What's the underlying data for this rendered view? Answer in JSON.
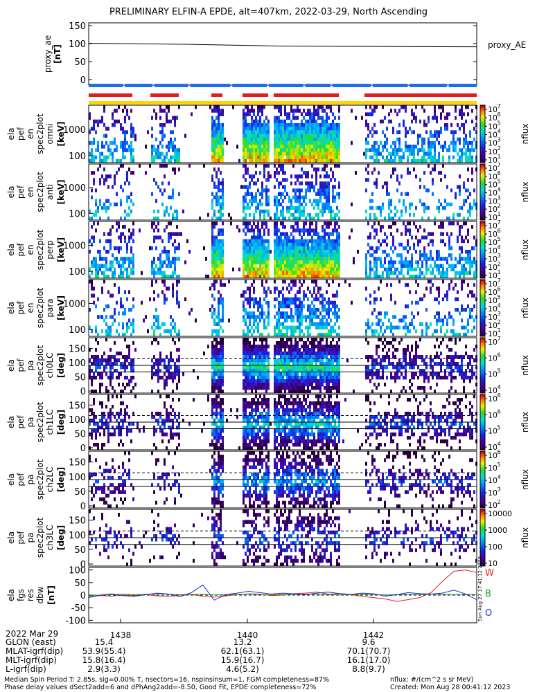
{
  "title": "PRELIMINARY ELFIN-A EPDE, alt=407km, 2022-03-29, North Ascending",
  "colors": {
    "bar_blue": "#1e6ee6",
    "bar_red": "#e11d1d",
    "bar_yellow": "#ffd400",
    "series_red": "#e11d1d",
    "series_green": "#16a816",
    "series_blue": "#1a2ad8"
  },
  "chart_data": [
    {
      "type": "line",
      "panel": "proxy_ae",
      "ylabel": [
        "proxy_ae",
        "[nT]"
      ],
      "yticks": [
        "150",
        "100",
        "50",
        "0"
      ],
      "ylim": [
        0,
        150
      ],
      "legend": "proxy_AE",
      "x": [
        0,
        0.25,
        0.5,
        0.75,
        1.0
      ],
      "values": [
        101,
        98,
        93,
        92,
        91
      ]
    },
    {
      "type": "status_bars",
      "panel": "orbit-status",
      "bars": [
        "blue",
        "red",
        "yellow"
      ]
    },
    {
      "type": "heatmap",
      "panel": "ela-pef-en-spec2plot-omni",
      "ylabel": [
        "ela",
        "pef",
        "en",
        "spec2plot",
        "omni",
        "[keV]"
      ],
      "yticks": [
        "1000",
        "100"
      ],
      "colorbar": {
        "label": "nflux",
        "ticks": [
          "10",
          "10",
          "10",
          "10",
          "10",
          "10",
          "10"
        ],
        "exps": [
          "7",
          "6",
          "5",
          "4",
          "3",
          "2",
          "1"
        ]
      }
    },
    {
      "type": "heatmap",
      "panel": "ela-pef-en-spec2plot-anti",
      "ylabel": [
        "ela",
        "pef",
        "en",
        "spec2plot",
        "anti",
        "[keV]"
      ],
      "yticks": [
        "1000",
        "100"
      ],
      "colorbar": {
        "label": "nflux",
        "ticks": [
          "10",
          "10",
          "10",
          "10",
          "10",
          "10",
          "10"
        ],
        "exps": [
          "7",
          "6",
          "5",
          "4",
          "3",
          "2",
          "1"
        ]
      }
    },
    {
      "type": "heatmap",
      "panel": "ela-pef-en-spec2plot-perp",
      "ylabel": [
        "ela",
        "pef",
        "en",
        "spec2plot",
        "perp",
        "[keV]"
      ],
      "yticks": [
        "1000",
        "100"
      ],
      "colorbar": {
        "label": "nflux",
        "ticks": [
          "10",
          "10",
          "10",
          "10",
          "10",
          "10",
          "10"
        ],
        "exps": [
          "7",
          "6",
          "5",
          "4",
          "3",
          "2",
          "1"
        ]
      }
    },
    {
      "type": "heatmap",
      "panel": "ela-pef-en-spec2plot-para",
      "ylabel": [
        "ela",
        "pef",
        "en",
        "spec2plot",
        "para",
        "[keV]"
      ],
      "yticks": [
        "1000",
        "100"
      ],
      "colorbar": {
        "label": "nflux",
        "ticks": [
          "10",
          "10",
          "10",
          "10",
          "10",
          "10",
          "10"
        ],
        "exps": [
          "7",
          "6",
          "5",
          "4",
          "3",
          "2",
          "1"
        ]
      }
    },
    {
      "type": "heatmap",
      "panel": "ela-pef-pa-spec2plot-ch0LC",
      "ylabel": [
        "ela",
        "pef",
        "pa",
        "spec2plot",
        "ch0LC",
        "[deg]"
      ],
      "yticks": [
        "150",
        "100",
        "50",
        "0"
      ],
      "ylim": [
        0,
        180
      ],
      "colorbar": {
        "label": "nflux",
        "ticks": [
          "10",
          "10",
          "10",
          "10"
        ],
        "exps": [
          "7",
          "6",
          "5",
          "4"
        ]
      }
    },
    {
      "type": "heatmap",
      "panel": "ela-pef-pa-spec2plot-ch1LC",
      "ylabel": [
        "ela",
        "pef",
        "pa",
        "spec2plot",
        "ch1LC",
        "[deg]"
      ],
      "yticks": [
        "150",
        "100",
        "50",
        "0"
      ],
      "ylim": [
        0,
        180
      ],
      "colorbar": {
        "label": "nflux",
        "ticks": [
          "10",
          "10",
          "10",
          "10"
        ],
        "exps": [
          "6",
          "6",
          "5",
          "4"
        ]
      }
    },
    {
      "type": "heatmap",
      "panel": "ela-pef-pa-spec2plot-ch2LC",
      "ylabel": [
        "ela",
        "pef",
        "pa",
        "spec2plot",
        "ch2LC",
        "[deg]"
      ],
      "yticks": [
        "150",
        "100",
        "50",
        "0"
      ],
      "ylim": [
        0,
        180
      ],
      "colorbar": {
        "label": "nflux",
        "ticks": [
          "10",
          "10",
          "10",
          "10",
          "10"
        ],
        "exps": [
          "6",
          "5",
          "4",
          "3",
          "2"
        ]
      }
    },
    {
      "type": "heatmap",
      "panel": "ela-pef-pa-spec2plot-ch3LC",
      "ylabel": [
        "ela",
        "pef",
        "pa",
        "spec2plot",
        "ch3LC",
        "[deg]"
      ],
      "yticks": [
        "150",
        "100",
        "50",
        "0"
      ],
      "ylim": [
        0,
        180
      ],
      "colorbar": {
        "label": "nflux",
        "ticks": [
          "10000",
          "1000",
          "100",
          "10"
        ],
        "exps": [
          "",
          "",
          "",
          ""
        ]
      }
    },
    {
      "type": "line",
      "panel": "ela-fgs-res-dbw",
      "ylabel": [
        "ela",
        "fgs",
        "res",
        "dbw",
        "[nT]"
      ],
      "yticks": [
        "100",
        "50",
        "0",
        "-50",
        "-100"
      ],
      "ylim": [
        -110,
        110
      ],
      "legend_letters": [
        "W",
        "B",
        "O"
      ],
      "side_note": "Sun Aug 27 17:41:12 2023",
      "series": [
        {
          "name": "W",
          "values": [
            -5,
            -2,
            -4,
            0,
            -2,
            2,
            -3,
            -5,
            0,
            2,
            -4,
            -8,
            -3,
            2,
            5,
            4,
            -2,
            0,
            6,
            8,
            12,
            4,
            5,
            2,
            -5,
            -10,
            -15,
            -25,
            -18,
            -10,
            10,
            55,
            95,
            100,
            90
          ]
        },
        {
          "name": "B",
          "values": [
            -2,
            0,
            2,
            4,
            2,
            3,
            5,
            4,
            2,
            3,
            3,
            1,
            2,
            3,
            4,
            2,
            1,
            3,
            2,
            4,
            3,
            2,
            1,
            2,
            3,
            2,
            1,
            2,
            3,
            2,
            4,
            3,
            2,
            3,
            2
          ]
        },
        {
          "name": "O",
          "values": [
            -10,
            0,
            5,
            -2,
            -5,
            2,
            8,
            4,
            -6,
            10,
            40,
            -20,
            2,
            8,
            15,
            10,
            4,
            8,
            5,
            2,
            8,
            12,
            6,
            3,
            8,
            5,
            -4,
            2,
            10,
            6,
            4,
            8,
            20,
            5,
            -18
          ]
        }
      ]
    }
  ],
  "time_axis": {
    "date_label": "2022 Mar 29",
    "ticks": [
      "1438",
      "1440",
      "1442"
    ]
  },
  "ephemeris": {
    "labels": [
      "GLON (east)",
      "MLAT-igrf(dip)",
      "MLT-igrf(dip)",
      "L-igrf(dip)"
    ],
    "columns": [
      [
        "15.4",
        "53.9(55.4)",
        "15.8(16.4)",
        "2.9(3.3)"
      ],
      [
        "13.2",
        "62.1(63.1)",
        "15.9(16.7)",
        "4.6(5.2)"
      ],
      [
        "9.6",
        "70.1(70.7)",
        "16.1(17.0)",
        "8.8(9.7)"
      ]
    ]
  },
  "footer": {
    "line1": "Median Spin Period T: 2.85s, sig=0.00% T, nsectors=16, nspinsinsum=1, FGM completeness=87%",
    "line2": "Phase delay values dSect2add=6 and dPhAng2add=-8.50, Good Fit, EPDE completeness=72%",
    "units": "nflux: #/(cm^2 s sr MeV)",
    "created": "Created: Mon Aug 28 00:41:12 2023"
  }
}
